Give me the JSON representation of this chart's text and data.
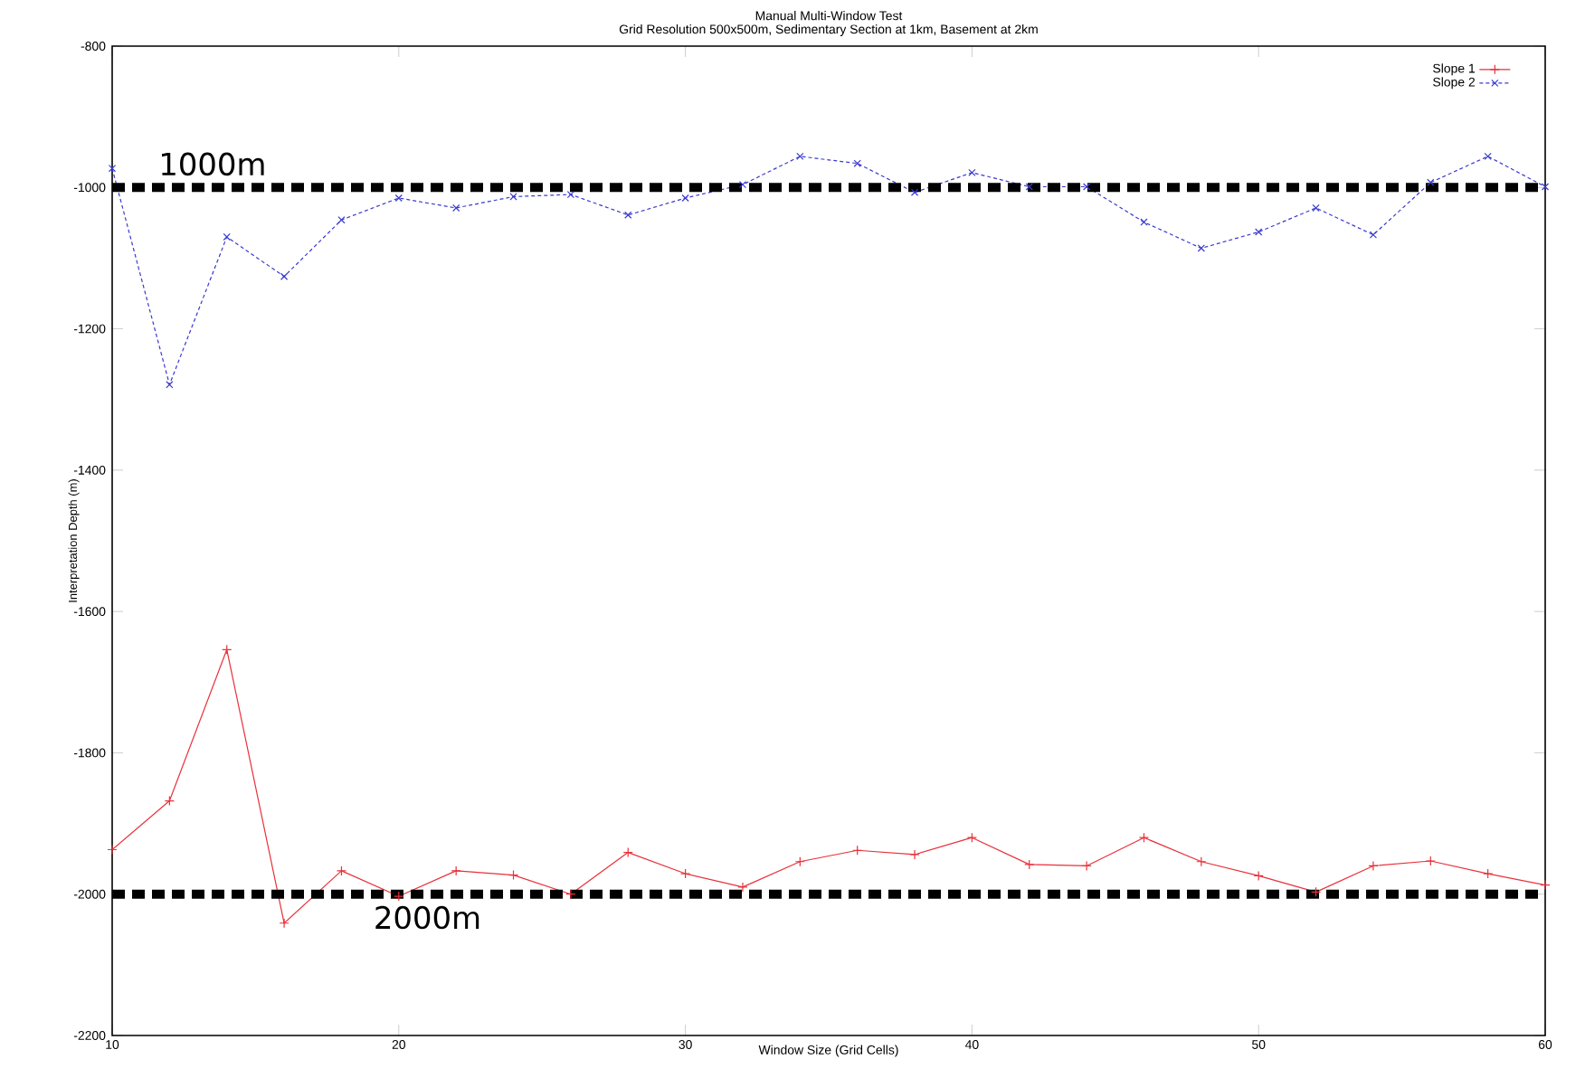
{
  "chart_data": {
    "type": "line",
    "title": "Manual Multi-Window Test",
    "subtitle": "Grid Resolution 500x500m, Sedimentary Section at 1km, Basement at 2km",
    "xlabel": "Window Size (Grid Cells)",
    "ylabel": "Interpretation Depth (m)",
    "x": [
      10,
      12,
      14,
      16,
      18,
      20,
      22,
      24,
      26,
      28,
      30,
      32,
      34,
      36,
      38,
      40,
      42,
      44,
      46,
      48,
      50,
      52,
      54,
      56,
      58,
      60
    ],
    "series": [
      {
        "name": "Slope 1",
        "color": "#e8313a",
        "marker": "plus",
        "line_style": "solid",
        "values": [
          -1937,
          -1868,
          -1654,
          -2041,
          -1967,
          -2003,
          -1967,
          -1973,
          -2000,
          -1941,
          -1971,
          -1990,
          -1954,
          -1938,
          -1944,
          -1920,
          -1958,
          -1960,
          -1920,
          -1954,
          -1974,
          -1997,
          -1960,
          -1953,
          -1971,
          -1987
        ]
      },
      {
        "name": "Slope 2",
        "color": "#3a3ad0",
        "marker": "cross",
        "line_style": "dashed",
        "values": [
          -973,
          -1279,
          -1070,
          -1126,
          -1046,
          -1015,
          -1029,
          -1013,
          -1010,
          -1039,
          -1015,
          -996,
          -956,
          -966,
          -1007,
          -979,
          -999,
          -999,
          -1049,
          -1086,
          -1063,
          -1029,
          -1067,
          -993,
          -956,
          -999
        ]
      }
    ],
    "ref_lines": [
      {
        "axis": "y",
        "value": -1000,
        "label": "1000m",
        "color": "#000000",
        "line_style": "dashed"
      },
      {
        "axis": "y",
        "value": -2000,
        "label": "2000m",
        "color": "#000000",
        "line_style": "dashed"
      }
    ],
    "xlim": [
      10,
      60
    ],
    "ylim": [
      -2200,
      -800
    ],
    "xticks": [
      10,
      20,
      30,
      40,
      50,
      60
    ],
    "yticks": [
      -2200,
      -2000,
      -1800,
      -1600,
      -1400,
      -1200,
      -1000,
      -800
    ],
    "grid": false,
    "legend": "top right"
  }
}
